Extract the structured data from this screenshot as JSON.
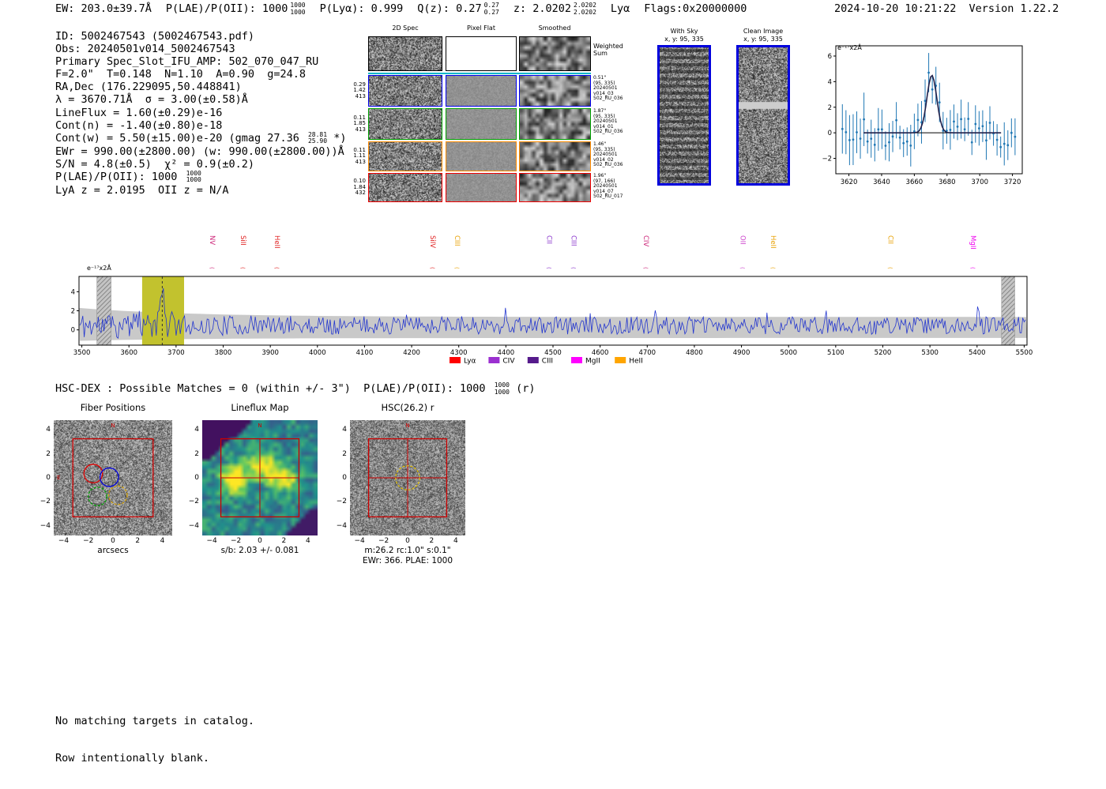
{
  "meta": {
    "timestamp": "2024-10-20 10:21:22",
    "version": "Version 1.22.2"
  },
  "header": {
    "ew": "EW: 203.0±39.7Å",
    "plae": "P(LAE)/P(OII): 1000",
    "plae_hi": "1000",
    "plae_lo": "1000",
    "plya": "P(Lyα): 0.999",
    "qz": "Q(z): 0.27",
    "qz_hi": "0.27",
    "qz_lo": "0.27",
    "z": "z: 2.0202",
    "z_hi": "2.0202",
    "z_lo": "2.0202",
    "line_type": "Lyα",
    "flags": "Flags:0x20000000"
  },
  "info": {
    "lines": [
      {
        "text": "ID: 5002467543 (5002467543.pdf)"
      },
      {
        "text": "Obs: 20240501v014_5002467543"
      },
      {
        "text": "Primary Spec_Slot_IFU_AMP: 502_070_047_RU"
      },
      {
        "text": "F=2.0\"  T=0.148  N=1.10  A=0.90  g=24.8"
      },
      {
        "text": "RA,Dec (176.229095,50.448841)"
      },
      {
        "text": "λ = 3670.71Å  σ = 3.00(±0.58)Å"
      },
      {
        "text": "LineFlux = 1.60(±0.29)e-16"
      },
      {
        "text": "Cont(n) = -1.40(±0.80)e-18"
      },
      {
        "pre": "Cont(w) = 5.50(±15.00)e-20 (gmag 27.36 ",
        "stack_top": "28.81",
        "stack_bottom": "25.90",
        "post": " *)"
      },
      {
        "text": "EWr = 990.00(±2800.00) (w: 990.00(±2800.00))Å"
      },
      {
        "text": "S/N = 4.8(±0.5)  χ² = 0.9(±0.2)"
      },
      {
        "pre": "P(LAE)/P(OII): 1000 ",
        "stack_top": "1000",
        "stack_bottom": "1000",
        "post": ""
      },
      {
        "text": "LyA z = 2.0195  OII z = N/A"
      }
    ]
  },
  "cutouts": {
    "column_headers": [
      "2D Spec",
      "Pixel Flat",
      "Smoothed"
    ],
    "rows": [
      {
        "color": "#000000",
        "left": [],
        "right": [
          "Weighted",
          "Sum"
        ]
      },
      {
        "color": "#0000ee",
        "left": [
          "0.29",
          "1.42",
          "413"
        ],
        "right": [
          "0.51\"",
          "(95, 335)",
          "20240501",
          "v014_03",
          "502_RU_036"
        ]
      },
      {
        "color": "#00a000",
        "left": [
          "0.11",
          "1.85",
          "413"
        ],
        "right": [
          "1.87\"",
          "(95, 335)",
          "20240501",
          "v014_01",
          "502_RU_036"
        ]
      },
      {
        "color": "#ff8c00",
        "left": [
          "0.11",
          "1.11",
          "413"
        ],
        "right": [
          "1.46\"",
          "(95, 335)",
          "20240501",
          "v014_02",
          "502_RU_036"
        ]
      },
      {
        "color": "#ee0000",
        "left": [
          "0.10",
          "1.84",
          "432"
        ],
        "right": [
          "1.96\"",
          "(97, 166)",
          "20240501",
          "v014_07",
          "502_RU_017"
        ]
      }
    ]
  },
  "sky_panels": [
    {
      "title": "With Sky",
      "subtitle": "x, y: 95, 335"
    },
    {
      "title": "Clean Image",
      "subtitle": "x, y: 95, 335"
    }
  ],
  "match_line": {
    "pre": "HSC-DEX : Possible Matches = 0 (within +/- 3\")  P(LAE)/P(OII): 1000 ",
    "stack_top": "1000",
    "stack_bottom": "1000",
    "post": " (r)"
  },
  "footer": {
    "lines": [
      "No matching targets in catalog.",
      "Row intentionally blank."
    ]
  },
  "chart_data": [
    {
      "id": "line_fit",
      "type": "scatter",
      "annotation": "e⁻¹⁷x2Å",
      "xlim": [
        3612,
        3726
      ],
      "ylim": [
        -3.2,
        6.8
      ],
      "xticks": [
        3620,
        3640,
        3660,
        3680,
        3700,
        3720
      ],
      "yticks": [
        -2,
        0,
        2,
        4,
        6
      ],
      "point_color": "#1f77b4",
      "fit_color": "#20204a",
      "fit": {
        "center": 3670.71,
        "sigma": 3.0,
        "amplitude": 4.5,
        "continuum": 0.0,
        "span": [
          3629,
          3713
        ]
      },
      "noise_seed": 7
    },
    {
      "id": "full_spectrum",
      "type": "line",
      "annotation": "e⁻¹⁷x2Å",
      "xlim": [
        3494,
        5506
      ],
      "ylim": [
        -1.6,
        5.6
      ],
      "xticks": [
        3500,
        3600,
        3700,
        3800,
        3900,
        4000,
        4100,
        4200,
        4300,
        4400,
        4500,
        4600,
        4700,
        4800,
        4900,
        5000,
        5100,
        5200,
        5300,
        5400,
        5500
      ],
      "yticks": [
        0,
        2,
        4
      ],
      "line_color": "#2336cf",
      "noise_seed": 11,
      "peak": {
        "wavelength": 3670.71,
        "height": 4.6
      },
      "highlight_band": {
        "range": [
          3628,
          3717
        ],
        "color": "#c2c22e"
      },
      "masked_bands": [
        [
          3532,
          3562
        ],
        [
          5452,
          5480
        ]
      ],
      "error_band_color": "#c9c9c9",
      "paren_glyph": "(",
      "line_markers": [
        {
          "name": "NV",
          "obs_wave": 3767,
          "color": "#cc2277"
        },
        {
          "name": "SiII",
          "obs_wave": 3833,
          "color": "#e02020"
        },
        {
          "name": "HeII",
          "obs_wave": 3905,
          "color": "#e02020"
        },
        {
          "name": "SiIV",
          "obs_wave": 4235,
          "color": "#e02020"
        },
        {
          "name": "CIII",
          "obs_wave": 4287,
          "color": "#e8a000"
        },
        {
          "name": "CII",
          "obs_wave": 4482,
          "color": "#8833cc"
        },
        {
          "name": "CIII",
          "obs_wave": 4534,
          "color": "#8833cc"
        },
        {
          "name": "CIV",
          "obs_wave": 4688,
          "color": "#cc2277"
        },
        {
          "name": "OII",
          "obs_wave": 4893,
          "color": "#cc44cc"
        },
        {
          "name": "HeII",
          "obs_wave": 4958,
          "color": "#e8a000"
        },
        {
          "name": "CII",
          "obs_wave": 5207,
          "color": "#e8a000"
        },
        {
          "name": "MgII",
          "obs_wave": 5382,
          "color": "#ee00ee"
        }
      ],
      "legend": [
        {
          "label": "Lyα",
          "color": "#ff0000"
        },
        {
          "label": "CIV",
          "color": "#9b30d0"
        },
        {
          "label": "CIII",
          "color": "#551a8b"
        },
        {
          "label": "MgII",
          "color": "#ff00ff"
        },
        {
          "label": "HeII",
          "color": "#ffa500"
        }
      ]
    },
    {
      "id": "fiber_positions",
      "type": "image",
      "title": "Fiber Positions",
      "xlabel": "arcsecs",
      "ticks": [
        -4,
        -2,
        0,
        2,
        4
      ],
      "axis_range": [
        -4.8,
        4.8
      ],
      "box_half_arcsec": 3.25,
      "compass": {
        "north": "N",
        "east": "E",
        "color": "#cc0000"
      },
      "fibers": [
        {
          "color": "#dd0000",
          "x": -1.6,
          "y": 0.35,
          "r": 0.75,
          "dashed": false
        },
        {
          "color": "#0000dd",
          "x": -0.3,
          "y": 0.05,
          "r": 0.75,
          "dashed": false
        },
        {
          "color": "#00a000",
          "x": -1.25,
          "y": -1.55,
          "r": 0.75,
          "dashed": true
        },
        {
          "color": "#cc9900",
          "x": 0.4,
          "y": -1.45,
          "r": 0.75,
          "dashed": true
        }
      ]
    },
    {
      "id": "lineflux_map",
      "type": "heatmap",
      "title": "Lineflux Map",
      "caption": "s/b: 2.03 +/- 0.081",
      "ticks": [
        -4,
        -2,
        0,
        2,
        4
      ],
      "axis_range": [
        -4.8,
        4.8
      ],
      "box_half_arcsec": 3.25,
      "compass": {
        "north": "N",
        "color": "#cc0000"
      }
    },
    {
      "id": "hsc_r",
      "type": "image",
      "title": "HSC(26.2) r",
      "caption1": "m:26.2 rc:1.0\" s:0.1\"",
      "caption2": "EWr: 366. PLAE: 1000",
      "ticks": [
        -4,
        -2,
        0,
        2,
        4
      ],
      "axis_range": [
        -4.8,
        4.8
      ],
      "box_half_arcsec": 3.25,
      "compass": {
        "north": "N",
        "color": "#cc0000"
      },
      "aperture": {
        "color": "#e6c300",
        "r": 1.0,
        "dashed": true
      }
    }
  ]
}
